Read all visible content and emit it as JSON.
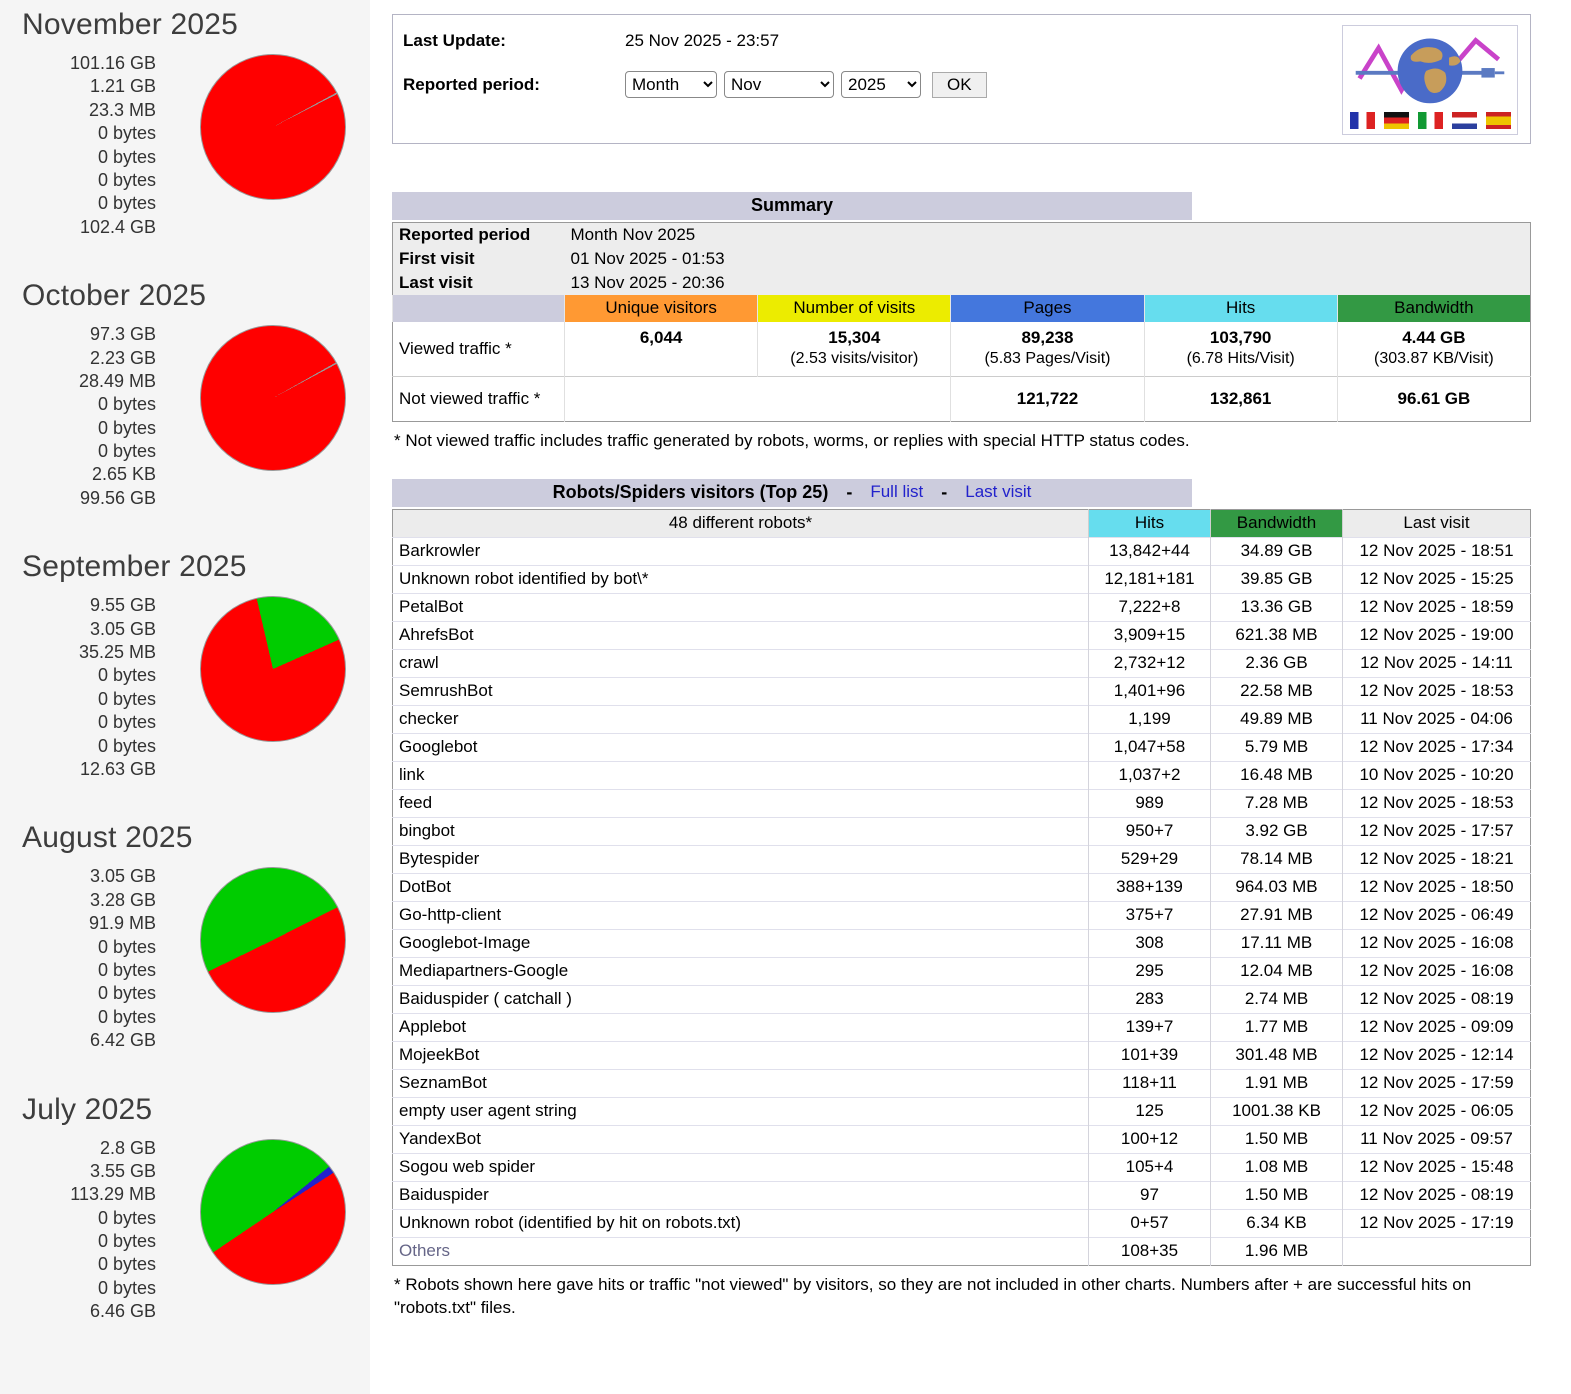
{
  "header": {
    "last_update_label": "Last Update:",
    "last_update_value": "25 Nov 2025 - 23:57",
    "reported_period_label": "Reported period:",
    "period_type": "Month",
    "period_month": "Nov",
    "period_year": "2025",
    "ok_label": "OK",
    "flags": [
      "fr",
      "de",
      "it",
      "nl",
      "es"
    ]
  },
  "summary": {
    "title": "Summary",
    "info": [
      {
        "label": "Reported period",
        "value": "Month Nov 2025"
      },
      {
        "label": "First visit",
        "value": "01 Nov 2025 - 01:53"
      },
      {
        "label": "Last visit",
        "value": "13 Nov 2025 - 20:36"
      }
    ],
    "columns": [
      {
        "label": "Unique visitors",
        "color": "#FF9933"
      },
      {
        "label": "Number of visits",
        "color": "#ECEC00"
      },
      {
        "label": "Pages",
        "color": "#4477DD"
      },
      {
        "label": "Hits",
        "color": "#66DDEE"
      },
      {
        "label": "Bandwidth",
        "color": "#339944"
      }
    ],
    "rows": [
      {
        "label": "Viewed traffic *",
        "cells": [
          {
            "main": "6,044",
            "sub": ""
          },
          {
            "main": "15,304",
            "sub": "(2.53 visits/visitor)"
          },
          {
            "main": "89,238",
            "sub": "(5.83 Pages/Visit)"
          },
          {
            "main": "103,790",
            "sub": "(6.78 Hits/Visit)"
          },
          {
            "main": "4.44 GB",
            "sub": "(303.87 KB/Visit)"
          }
        ]
      },
      {
        "label": "Not viewed traffic *",
        "cells": [
          {
            "main": "",
            "sub": "",
            "colspan": 2
          },
          {
            "main": "121,722",
            "sub": ""
          },
          {
            "main": "132,861",
            "sub": ""
          },
          {
            "main": "96.61 GB",
            "sub": ""
          }
        ]
      }
    ],
    "footnote": "* Not viewed traffic includes traffic generated by robots, worms, or replies with special HTTP status codes."
  },
  "robots": {
    "title": "Robots/Spiders visitors (Top 25)",
    "separator": "-",
    "links": [
      "Full list",
      "Last visit"
    ],
    "columns": [
      "48 different robots*",
      "Hits",
      "Bandwidth",
      "Last visit"
    ],
    "header_colors": {
      "hits": "#66DDEE",
      "bandwidth": "#339944"
    },
    "rows": [
      [
        "Barkrowler",
        "13,842+44",
        "34.89 GB",
        "12 Nov 2025 - 18:51"
      ],
      [
        "Unknown robot identified by bot\\*",
        "12,181+181",
        "39.85 GB",
        "12 Nov 2025 - 15:25"
      ],
      [
        "PetalBot",
        "7,222+8",
        "13.36 GB",
        "12 Nov 2025 - 18:59"
      ],
      [
        "AhrefsBot",
        "3,909+15",
        "621.38 MB",
        "12 Nov 2025 - 19:00"
      ],
      [
        "crawl",
        "2,732+12",
        "2.36 GB",
        "12 Nov 2025 - 14:11"
      ],
      [
        "SemrushBot",
        "1,401+96",
        "22.58 MB",
        "12 Nov 2025 - 18:53"
      ],
      [
        "checker",
        "1,199",
        "49.89 MB",
        "11 Nov 2025 - 04:06"
      ],
      [
        "Googlebot",
        "1,047+58",
        "5.79 MB",
        "12 Nov 2025 - 17:34"
      ],
      [
        "link",
        "1,037+2",
        "16.48 MB",
        "10 Nov 2025 - 10:20"
      ],
      [
        "feed",
        "989",
        "7.28 MB",
        "12 Nov 2025 - 18:53"
      ],
      [
        "bingbot",
        "950+7",
        "3.92 GB",
        "12 Nov 2025 - 17:57"
      ],
      [
        "Bytespider",
        "529+29",
        "78.14 MB",
        "12 Nov 2025 - 18:21"
      ],
      [
        "DotBot",
        "388+139",
        "964.03 MB",
        "12 Nov 2025 - 18:50"
      ],
      [
        "Go-http-client",
        "375+7",
        "27.91 MB",
        "12 Nov 2025 - 06:49"
      ],
      [
        "Googlebot-Image",
        "308",
        "17.11 MB",
        "12 Nov 2025 - 16:08"
      ],
      [
        "Mediapartners-Google",
        "295",
        "12.04 MB",
        "12 Nov 2025 - 16:08"
      ],
      [
        "Baiduspider ( catchall )",
        "283",
        "2.74 MB",
        "12 Nov 2025 - 08:19"
      ],
      [
        "Applebot",
        "139+7",
        "1.77 MB",
        "12 Nov 2025 - 09:09"
      ],
      [
        "MojeekBot",
        "101+39",
        "301.48 MB",
        "12 Nov 2025 - 12:14"
      ],
      [
        "SeznamBot",
        "118+11",
        "1.91 MB",
        "12 Nov 2025 - 17:59"
      ],
      [
        "empty user agent string",
        "125",
        "1001.38 KB",
        "12 Nov 2025 - 06:05"
      ],
      [
        "YandexBot",
        "100+12",
        "1.50 MB",
        "11 Nov 2025 - 09:57"
      ],
      [
        "Sogou web spider",
        "105+4",
        "1.08 MB",
        "12 Nov 2025 - 15:48"
      ],
      [
        "Baiduspider",
        "97",
        "1.50 MB",
        "12 Nov 2025 - 08:19"
      ],
      [
        "Unknown robot (identified by hit on robots.txt)",
        "0+57",
        "6.34 KB",
        "12 Nov 2025 - 17:19"
      ],
      [
        "Others",
        "108+35",
        "1.96 MB",
        ""
      ]
    ],
    "footnote": "* Robots shown here gave hits or traffic \"not viewed\" by visitors, so they are not included in other charts. Numbers after + are successful hits on \"robots.txt\" files."
  },
  "months": [
    {
      "title": "November 2025",
      "values": [
        "101.16 GB",
        "1.21 GB",
        "23.3 MB",
        "0 bytes",
        "0 bytes",
        "0 bytes",
        "0 bytes",
        "102.4 GB"
      ],
      "pie_slices": [
        {
          "color": "#FF0000",
          "start": 0,
          "end": 61.5
        },
        {
          "color": "#999999",
          "start": 61.5,
          "end": 62.8
        },
        {
          "color": "#FF0000",
          "start": 62.8,
          "end": 360
        }
      ]
    },
    {
      "title": "October 2025",
      "values": [
        "97.3 GB",
        "2.23 GB",
        "28.49 MB",
        "0 bytes",
        "0 bytes",
        "0 bytes",
        "2.65 KB",
        "99.56 GB"
      ],
      "pie_slices": [
        {
          "color": "#FF0000",
          "start": 0,
          "end": 60.5
        },
        {
          "color": "#999999",
          "start": 60.5,
          "end": 61.8
        },
        {
          "color": "#FF0000",
          "start": 61.8,
          "end": 360
        }
      ]
    },
    {
      "title": "September 2025",
      "values": [
        "9.55 GB",
        "3.05 GB",
        "35.25 MB",
        "0 bytes",
        "0 bytes",
        "0 bytes",
        "0 bytes",
        "12.63 GB"
      ],
      "pie_slices": [
        {
          "color": "#00CC00",
          "start": 0,
          "end": 66
        },
        {
          "color": "#FF0000",
          "start": 66,
          "end": 347
        },
        {
          "color": "#00CC00",
          "start": 347,
          "end": 360
        }
      ]
    },
    {
      "title": "August 2025",
      "values": [
        "3.05 GB",
        "3.28 GB",
        "91.9 MB",
        "0 bytes",
        "0 bytes",
        "0 bytes",
        "0 bytes",
        "6.42 GB"
      ],
      "pie_slices": [
        {
          "color": "#00CC00",
          "start": 0,
          "end": 63
        },
        {
          "color": "#FF0000",
          "start": 63,
          "end": 244
        },
        {
          "color": "#00CC00",
          "start": 244,
          "end": 360
        }
      ]
    },
    {
      "title": "July 2025",
      "values": [
        "2.8 GB",
        "3.55 GB",
        "113.29 MB",
        "0 bytes",
        "0 bytes",
        "0 bytes",
        "0 bytes",
        "6.46 GB"
      ],
      "pie_slices": [
        {
          "color": "#00CC00",
          "start": 0,
          "end": 51
        },
        {
          "color": "#2222CC",
          "start": 51,
          "end": 57
        },
        {
          "color": "#FF0000",
          "start": 57,
          "end": 236
        },
        {
          "color": "#00CC00",
          "start": 236,
          "end": 360
        }
      ]
    }
  ]
}
